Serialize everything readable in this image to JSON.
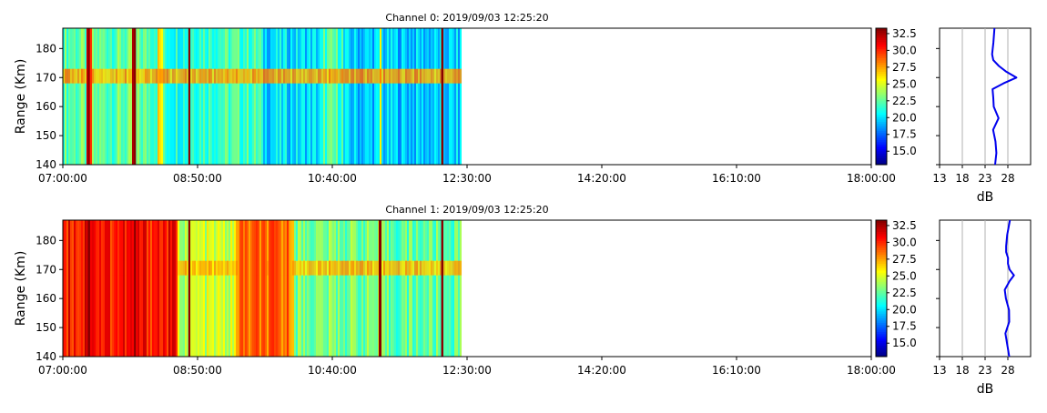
{
  "chart_data": [
    {
      "type": "heatmap",
      "title": "Channel 0: 2019/09/03 12:25:20",
      "ylabel": "Range (Km)",
      "xlabel": "",
      "x_ticks": [
        "07:00:00",
        "08:50:00",
        "10:40:00",
        "12:30:00",
        "14:20:00",
        "16:10:00",
        "18:00:00"
      ],
      "x_range_hours": [
        7.0,
        18.0
      ],
      "data_end_hours": 12.4222,
      "y_ticks": [
        140,
        150,
        160,
        170,
        180
      ],
      "ylim": [
        140,
        187
      ],
      "colorbar": {
        "ticks": [
          "15.0",
          "17.5",
          "20.0",
          "22.5",
          "25.0",
          "27.5",
          "30.0",
          "32.5"
        ],
        "range": [
          13.0,
          33.3
        ],
        "colormap": "jet"
      },
      "stripes": [
        {
          "t0": 7.0,
          "t1": 7.33,
          "v": 22.5
        },
        {
          "t0": 7.33,
          "t1": 7.4,
          "v": 30.0
        },
        {
          "t0": 7.4,
          "t1": 7.95,
          "v": 22.5
        },
        {
          "t0": 7.95,
          "t1": 8.0,
          "v": 32.5
        },
        {
          "t0": 8.0,
          "t1": 8.3,
          "v": 22.5
        },
        {
          "t0": 8.3,
          "t1": 8.36,
          "v": 26.0
        },
        {
          "t0": 8.36,
          "t1": 8.7,
          "v": 21.5
        },
        {
          "t0": 8.7,
          "t1": 8.74,
          "v": 30.0
        },
        {
          "t0": 8.74,
          "t1": 9.7,
          "v": 22.0
        },
        {
          "t0": 9.7,
          "t1": 10.55,
          "v": 20.0
        },
        {
          "t0": 10.55,
          "t1": 10.82,
          "v": 22.0
        },
        {
          "t0": 10.82,
          "t1": 11.3,
          "v": 19.5
        },
        {
          "t0": 11.3,
          "t1": 11.33,
          "v": 26.0
        },
        {
          "t0": 11.33,
          "t1": 12.15,
          "v": 19.5
        },
        {
          "t0": 12.15,
          "t1": 12.18,
          "v": 32.0
        },
        {
          "t0": 12.18,
          "t1": 12.42,
          "v": 19.5
        }
      ],
      "bright_lines": [
        7.35,
        7.98,
        8.72,
        12.16
      ],
      "layer": {
        "center_km": 170.5,
        "half_width_km": 2.5,
        "value": 27.5
      },
      "profile": {
        "xlabel": "dB",
        "x_ticks": [
          13,
          18,
          23,
          28
        ],
        "xlim": [
          13,
          33
        ],
        "range_km": [
          140,
          144,
          148,
          152,
          156,
          160,
          163,
          166,
          168,
          170,
          172,
          174,
          176,
          178,
          182,
          187
        ],
        "db": [
          25.5,
          25.5,
          25.0,
          24.8,
          25.8,
          25.0,
          24.5,
          24.6,
          27.0,
          29.7,
          27.8,
          25.8,
          25.0,
          24.8,
          24.9,
          25.0
        ]
      }
    },
    {
      "type": "heatmap",
      "title": "Channel 1: 2019/09/03 12:25:20",
      "ylabel": "Range (Km)",
      "xlabel": "",
      "x_ticks": [
        "07:00:00",
        "08:50:00",
        "10:40:00",
        "12:30:00",
        "14:20:00",
        "16:10:00",
        "18:00:00"
      ],
      "x_range_hours": [
        7.0,
        18.0
      ],
      "data_end_hours": 12.4222,
      "y_ticks": [
        140,
        150,
        160,
        170,
        180
      ],
      "ylim": [
        140,
        187
      ],
      "colorbar": {
        "ticks": [
          "15.0",
          "17.5",
          "20.0",
          "22.5",
          "25.0",
          "27.5",
          "30.0",
          "32.5"
        ],
        "range": [
          13.0,
          33.3
        ],
        "colormap": "jet"
      },
      "stripes": [
        {
          "t0": 7.0,
          "t1": 7.3,
          "v": 30.5
        },
        {
          "t0": 7.3,
          "t1": 7.45,
          "v": 32.0
        },
        {
          "t0": 7.45,
          "t1": 8.55,
          "v": 30.5
        },
        {
          "t0": 8.55,
          "t1": 9.35,
          "v": 24.5
        },
        {
          "t0": 9.35,
          "t1": 10.15,
          "v": 28.5
        },
        {
          "t0": 10.15,
          "t1": 11.3,
          "v": 23.0
        },
        {
          "t0": 11.3,
          "t1": 11.33,
          "v": 33.0
        },
        {
          "t0": 11.33,
          "t1": 12.15,
          "v": 22.5
        },
        {
          "t0": 12.15,
          "t1": 12.18,
          "v": 32.5
        },
        {
          "t0": 12.18,
          "t1": 12.42,
          "v": 22.5
        }
      ],
      "bright_lines": [
        7.35,
        7.98,
        8.72,
        11.31,
        12.16
      ],
      "layer": {
        "center_km": 170.5,
        "half_width_km": 2.5,
        "value": 27.0
      },
      "profile": {
        "xlabel": "dB",
        "x_ticks": [
          13,
          18,
          23,
          28
        ],
        "xlim": [
          13,
          33
        ],
        "range_km": [
          140,
          144,
          148,
          152,
          156,
          160,
          163,
          166,
          168,
          170,
          172,
          174,
          176,
          178,
          182,
          187
        ],
        "db": [
          28.0,
          27.8,
          27.5,
          28.5,
          28.3,
          27.6,
          27.5,
          28.6,
          29.3,
          28.5,
          28.3,
          28.1,
          27.9,
          27.8,
          28.0,
          28.5
        ]
      }
    }
  ]
}
